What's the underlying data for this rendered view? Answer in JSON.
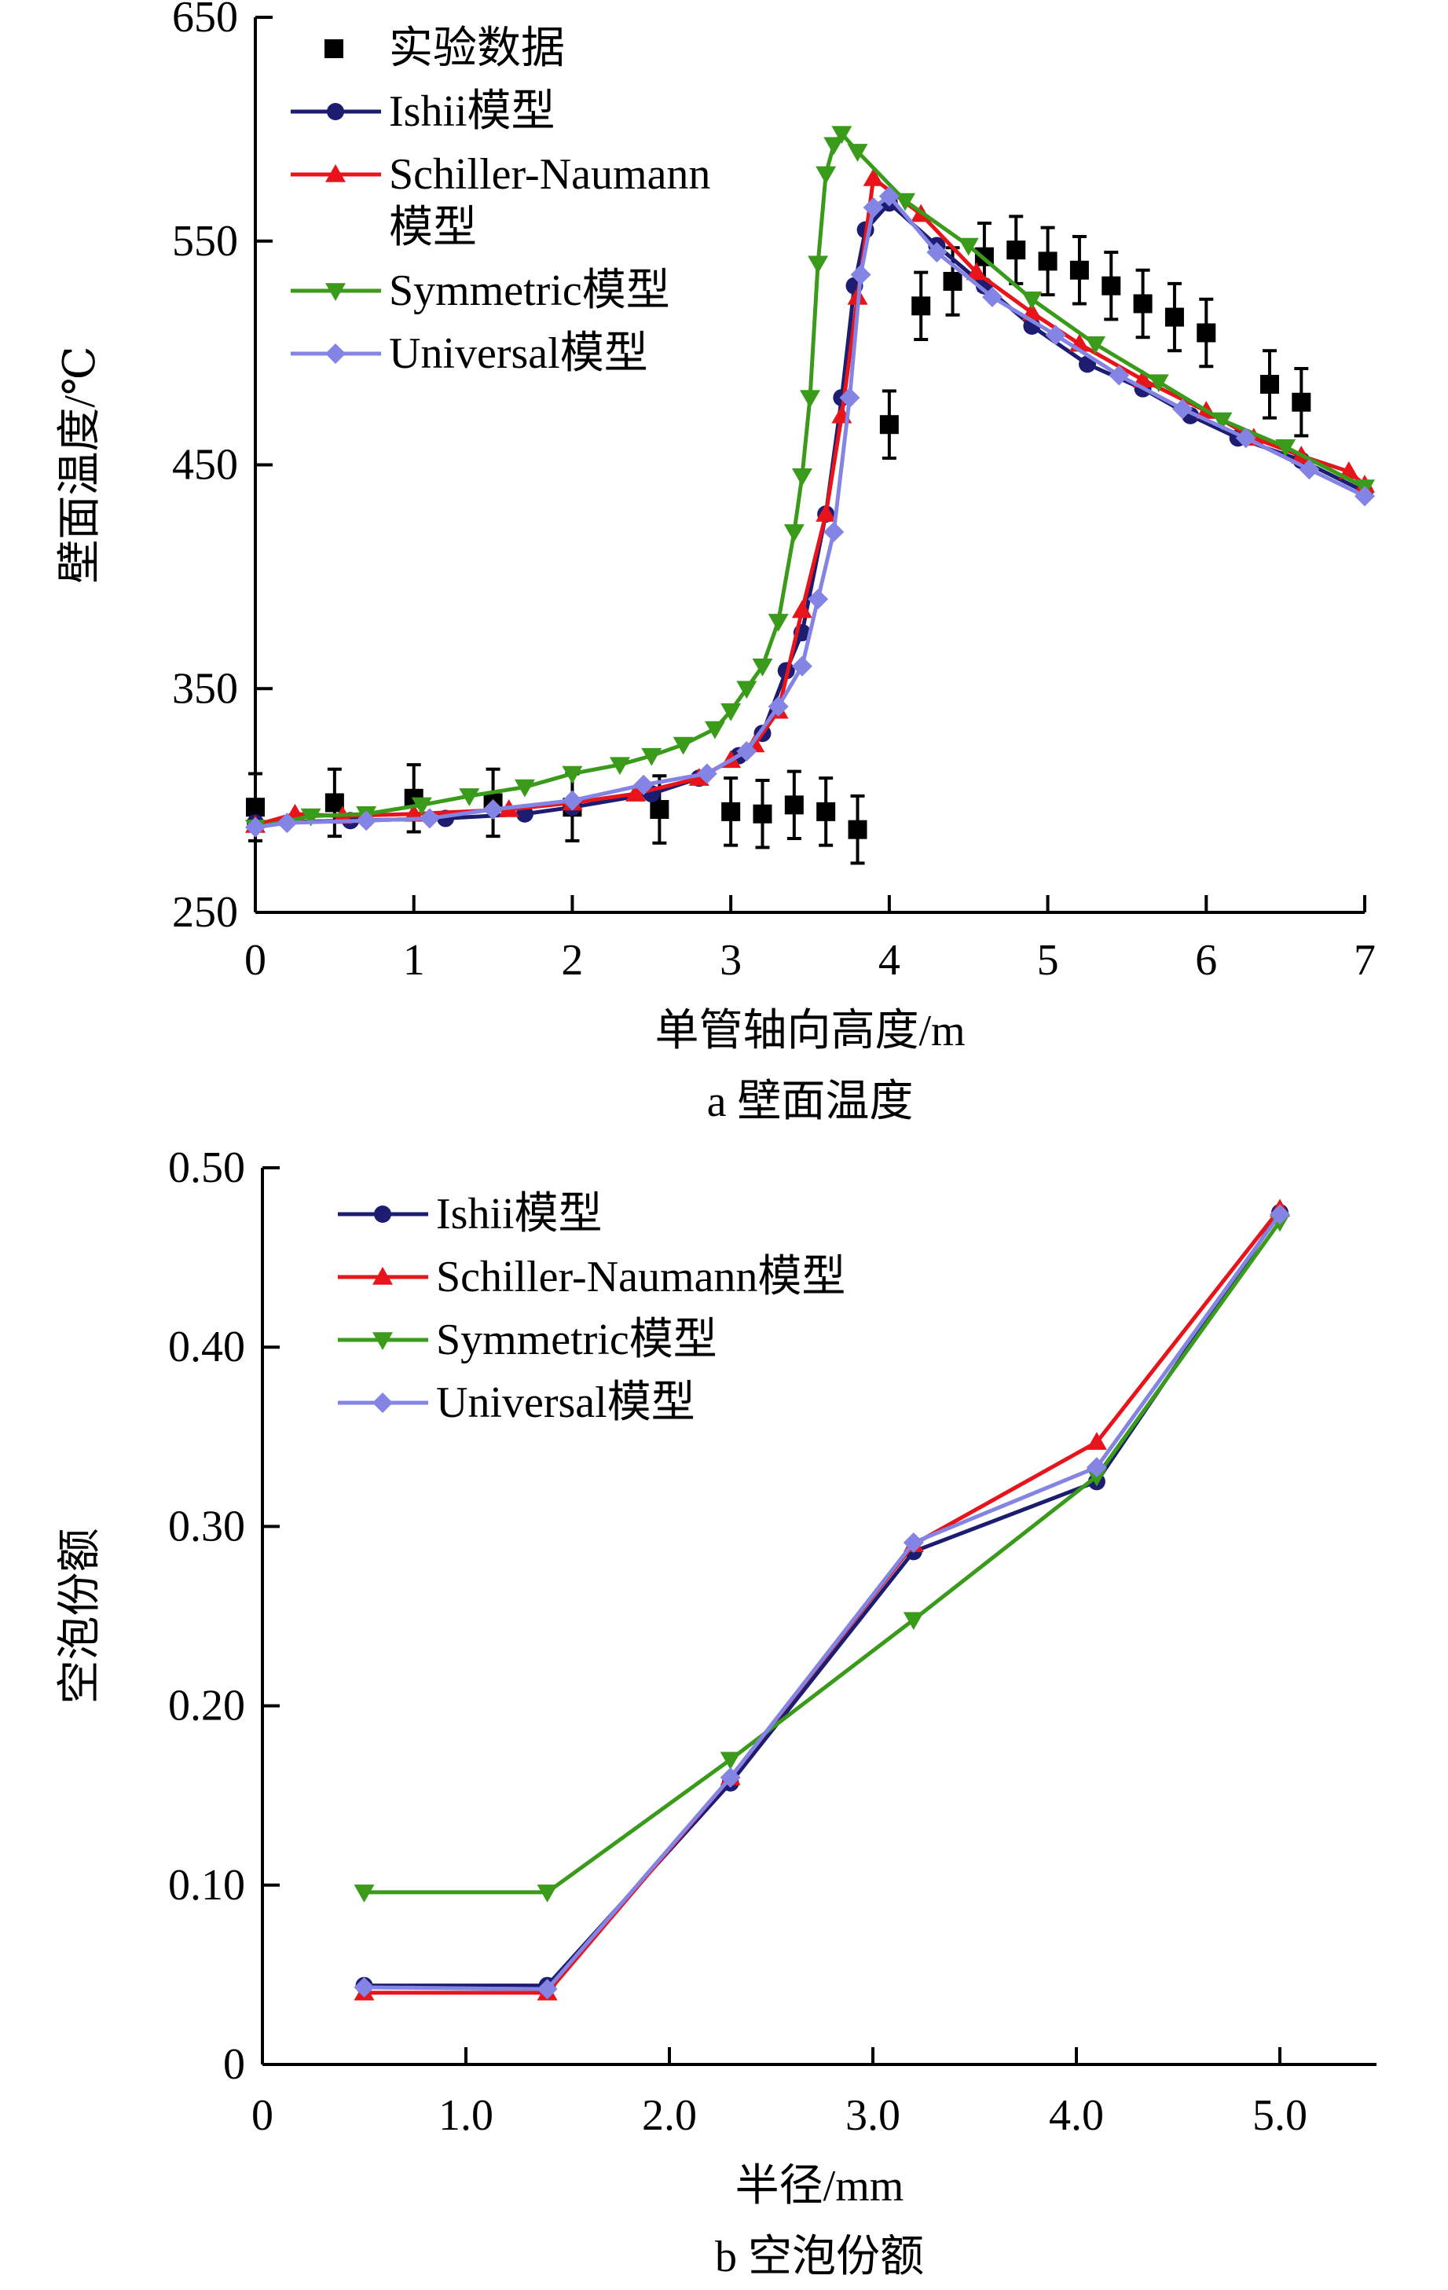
{
  "colors": {
    "ishii": "#1c1c70",
    "schiller": "#e8141c",
    "symmetric": "#3a9a1a",
    "universal": "#8484e4",
    "exp": "#000000"
  },
  "chart_data": [
    {
      "type": "line",
      "caption": "a  壁面温度",
      "xlabel": "单管轴向高度/m",
      "ylabel": "壁面温度/℃",
      "xlim": [
        0,
        7
      ],
      "ylim": [
        250,
        650
      ],
      "xticks": [
        "0",
        "1",
        "2",
        "3",
        "4",
        "5",
        "6",
        "7"
      ],
      "xtick_values": [
        0,
        1,
        2,
        3,
        4,
        5,
        6,
        7
      ],
      "yticks": [
        "250",
        "350",
        "450",
        "550",
        "650"
      ],
      "ytick_values": [
        250,
        350,
        450,
        550,
        650
      ],
      "legend_position": "top-left",
      "experiment": {
        "name": "实验数据",
        "x": [
          0,
          0.5,
          1.0,
          1.5,
          2.0,
          2.55,
          3.0,
          3.2,
          3.4,
          3.6,
          3.8,
          4.0,
          4.2,
          4.4,
          4.6,
          4.8,
          5.0,
          5.2,
          5.4,
          5.6,
          5.8,
          6.0,
          6.4,
          6.6
        ],
        "y": [
          297,
          299,
          301,
          299,
          297,
          296,
          295,
          294,
          298,
          295,
          287,
          468,
          521,
          532,
          543,
          546,
          541,
          537,
          530,
          522,
          516,
          509,
          486,
          478
        ],
        "error": 15
      },
      "series": [
        {
          "name": "Ishii模型",
          "key": "ishii",
          "marker": "circle",
          "x": [
            0,
            0.6,
            1.2,
            1.7,
            2.0,
            2.5,
            2.8,
            3.05,
            3.2,
            3.35,
            3.45,
            3.6,
            3.7,
            3.78,
            3.85,
            4.0,
            4.3,
            4.6,
            4.9,
            5.25,
            5.6,
            5.9,
            6.2,
            6.6,
            7.0
          ],
          "y": [
            290,
            291,
            292,
            294,
            297,
            303,
            310,
            320,
            330,
            358,
            375,
            428,
            480,
            530,
            555,
            567,
            548,
            530,
            512,
            495,
            484,
            472,
            462,
            452,
            438
          ]
        },
        {
          "name": "Schiller-Naumann模型",
          "key": "schiller",
          "marker": "triangle-up",
          "x": [
            0,
            0.25,
            0.55,
            1.0,
            1.6,
            2.0,
            2.4,
            2.8,
            3.0,
            3.15,
            3.3,
            3.45,
            3.6,
            3.7,
            3.8,
            3.9,
            4.2,
            4.55,
            4.9,
            5.2,
            5.6,
            6.0,
            6.3,
            6.6,
            6.9,
            7.0
          ],
          "y": [
            289,
            294,
            293,
            294,
            296,
            299,
            303,
            310,
            318,
            325,
            340,
            385,
            428,
            472,
            525,
            578,
            562,
            536,
            518,
            504,
            488,
            474,
            462,
            454,
            447,
            441
          ]
        },
        {
          "name": "Symmetric模型",
          "key": "symmetric",
          "marker": "triangle-down",
          "x": [
            0,
            0.35,
            0.7,
            1.05,
            1.35,
            1.7,
            2.0,
            2.3,
            2.5,
            2.7,
            2.9,
            3.0,
            3.1,
            3.2,
            3.3,
            3.4,
            3.45,
            3.5,
            3.55,
            3.6,
            3.65,
            3.7,
            3.8,
            4.1,
            4.5,
            4.9,
            5.3,
            5.7,
            6.1,
            6.5,
            7.0
          ],
          "y": [
            288,
            293,
            294,
            298,
            302,
            306,
            312,
            316,
            320,
            325,
            332,
            340,
            350,
            360,
            380,
            420,
            445,
            480,
            540,
            580,
            593,
            598,
            590,
            568,
            548,
            524,
            504,
            487,
            470,
            458,
            440
          ]
        },
        {
          "name": "Universal模型",
          "key": "universal",
          "marker": "diamond",
          "x": [
            0,
            0.2,
            0.7,
            1.1,
            1.5,
            2.0,
            2.45,
            2.85,
            3.1,
            3.3,
            3.45,
            3.55,
            3.65,
            3.75,
            3.82,
            3.9,
            4.0,
            4.3,
            4.65,
            5.05,
            5.45,
            5.85,
            6.25,
            6.65,
            7.0
          ],
          "y": [
            288,
            290,
            291,
            292,
            296,
            300,
            307,
            312,
            322,
            342,
            360,
            390,
            420,
            480,
            535,
            565,
            570,
            545,
            525,
            508,
            490,
            475,
            462,
            448,
            436
          ]
        }
      ]
    },
    {
      "type": "line",
      "caption": "b  空泡份额",
      "xlabel": "半径/mm",
      "ylabel": "空泡份额",
      "xlim": [
        0,
        5.45
      ],
      "ylim": [
        0,
        0.5
      ],
      "xticks": [
        "0",
        "1.0",
        "2.0",
        "3.0",
        "4.0",
        "5.0"
      ],
      "xtick_values": [
        0,
        1,
        2,
        3,
        4,
        5
      ],
      "yticks": [
        "0",
        "0.10",
        "0.20",
        "0.30",
        "0.40",
        "0.50"
      ],
      "ytick_values": [
        0,
        0.1,
        0.2,
        0.3,
        0.4,
        0.5
      ],
      "legend_position": "top-left",
      "series": [
        {
          "name": "Ishii模型",
          "key": "ishii",
          "marker": "circle",
          "x": [
            0.5,
            1.4,
            2.3,
            3.2,
            4.1,
            5.0
          ],
          "y": [
            0.044,
            0.044,
            0.157,
            0.286,
            0.325,
            0.475
          ]
        },
        {
          "name": "Schiller-Naumann模型",
          "key": "schiller",
          "marker": "triangle-up",
          "x": [
            0.5,
            1.4,
            2.3,
            3.2,
            4.1,
            5.0
          ],
          "y": [
            0.04,
            0.04,
            0.16,
            0.29,
            0.347,
            0.477
          ]
        },
        {
          "name": "Symmetric模型",
          "key": "symmetric",
          "marker": "triangle-down",
          "x": [
            0.5,
            1.4,
            2.3,
            3.2,
            4.1,
            5.0
          ],
          "y": [
            0.096,
            0.096,
            0.17,
            0.248,
            0.328,
            0.47
          ]
        },
        {
          "name": "Universal模型",
          "key": "universal",
          "marker": "diamond",
          "x": [
            0.5,
            1.4,
            2.3,
            3.2,
            4.1,
            5.0
          ],
          "y": [
            0.043,
            0.042,
            0.16,
            0.291,
            0.333,
            0.474
          ]
        }
      ]
    }
  ]
}
